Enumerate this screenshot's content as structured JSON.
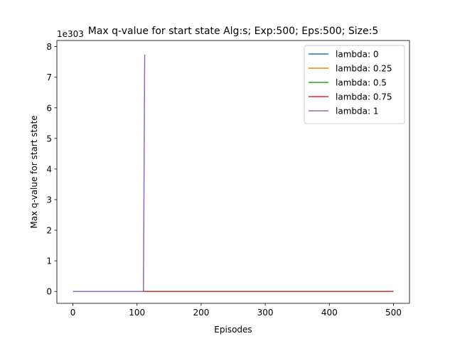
{
  "chart_data": {
    "type": "line",
    "title": "Max q-value for start state Alg:s; Exp:500; Eps:500; Size:5",
    "xlabel": "Episodes",
    "ylabel": "Max q-value for start state",
    "y_offset_label": "1e303",
    "xlim": [
      -25,
      525
    ],
    "ylim": [
      -0.39,
      8.2
    ],
    "x_ticks": [
      0,
      100,
      200,
      300,
      400,
      500
    ],
    "x_tick_labels": [
      "0",
      "100",
      "200",
      "300",
      "400",
      "500"
    ],
    "y_ticks": [
      0,
      1,
      2,
      3,
      4,
      5,
      6,
      7,
      8
    ],
    "y_tick_labels": [
      "0",
      "1",
      "2",
      "3",
      "4",
      "5",
      "6",
      "7",
      "8"
    ],
    "grid": false,
    "legend_position": "top-right",
    "series": [
      {
        "name": "lambda: 0",
        "color": "#1f77b4",
        "points": [
          [
            0,
            0
          ],
          [
            500,
            0
          ]
        ]
      },
      {
        "name": "lambda: 0.25",
        "color": "#ff7f0e",
        "points": [
          [
            0,
            0
          ],
          [
            500,
            0
          ]
        ]
      },
      {
        "name": "lambda: 0.5",
        "color": "#2ca02c",
        "points": [
          [
            0,
            0
          ],
          [
            500,
            0
          ]
        ]
      },
      {
        "name": "lambda: 0.75",
        "color": "#d62728",
        "points": [
          [
            0,
            0
          ],
          [
            500,
            0
          ]
        ]
      },
      {
        "name": "lambda: 1",
        "color": "#9467bd",
        "points": [
          [
            0,
            0
          ],
          [
            110,
            0
          ],
          [
            112,
            7.72
          ],
          [
            113,
            7.72
          ]
        ]
      }
    ]
  }
}
